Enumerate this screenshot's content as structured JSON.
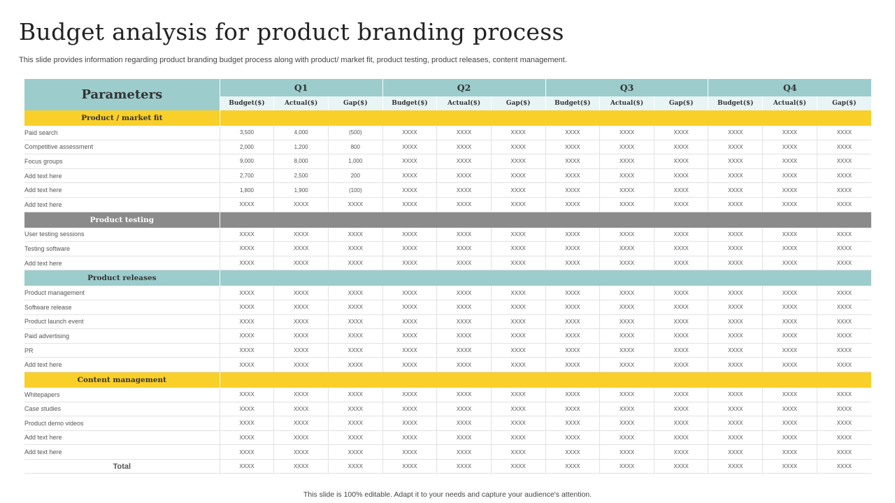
{
  "title": "Budget analysis for product branding process",
  "subtitle": "This slide provides information regarding product branding budget process along with product/ market fit, product testing, product releases, content management.",
  "footer": "This slide is 100% editable. Adapt it to your needs and capture your audience's attention.",
  "table": {
    "params_header": "Parameters",
    "quarters": [
      "Q1",
      "Q2",
      "Q3",
      "Q4"
    ],
    "sub_headers": [
      "Budget($)",
      "Actual($)",
      "Gap($)"
    ],
    "sections": [
      {
        "label": "Product / market fit",
        "style": "yellow",
        "rows": [
          {
            "label": "Paid search",
            "values": [
              "3,500",
              "4,000",
              "(500)",
              "XXXX",
              "XXXX",
              "XXXX",
              "XXXX",
              "XXXX",
              "XXXX",
              "XXXX",
              "XXXX",
              "XXXX"
            ]
          },
          {
            "label": "Competitive assessment",
            "values": [
              "2,000",
              "1,200",
              "800",
              "XXXX",
              "XXXX",
              "XXXX",
              "XXXX",
              "XXXX",
              "XXXX",
              "XXXX",
              "XXXX",
              "XXXX"
            ]
          },
          {
            "label": "Focus groups",
            "values": [
              "9,000",
              "8,000",
              "1,000",
              "XXXX",
              "XXXX",
              "XXXX",
              "XXXX",
              "XXXX",
              "XXXX",
              "XXXX",
              "XXXX",
              "XXXX"
            ]
          },
          {
            "label": "Add text here",
            "values": [
              "2,700",
              "2,500",
              "200",
              "XXXX",
              "XXXX",
              "XXXX",
              "XXXX",
              "XXXX",
              "XXXX",
              "XXXX",
              "XXXX",
              "XXXX"
            ]
          },
          {
            "label": "Add text here",
            "values": [
              "1,800",
              "1,900",
              "(100)",
              "XXXX",
              "XXXX",
              "XXXX",
              "XXXX",
              "XXXX",
              "XXXX",
              "XXXX",
              "XXXX",
              "XXXX"
            ]
          },
          {
            "label": "Add text here",
            "values": [
              "XXXX",
              "XXXX",
              "XXXX",
              "XXXX",
              "XXXX",
              "XXXX",
              "XXXX",
              "XXXX",
              "XXXX",
              "XXXX",
              "XXXX",
              "XXXX"
            ]
          }
        ]
      },
      {
        "label": "Product testing",
        "style": "gray",
        "rows": [
          {
            "label": "User testing sessions",
            "values": [
              "XXXX",
              "XXXX",
              "XXXX",
              "XXXX",
              "XXXX",
              "XXXX",
              "XXXX",
              "XXXX",
              "XXXX",
              "XXXX",
              "XXXX",
              "XXXX"
            ]
          },
          {
            "label": "Testing software",
            "values": [
              "XXXX",
              "XXXX",
              "XXXX",
              "XXXX",
              "XXXX",
              "XXXX",
              "XXXX",
              "XXXX",
              "XXXX",
              "XXXX",
              "XXXX",
              "XXXX"
            ]
          },
          {
            "label": "Add text here",
            "values": [
              "XXXX",
              "XXXX",
              "XXXX",
              "XXXX",
              "XXXX",
              "XXXX",
              "XXXX",
              "XXXX",
              "XXXX",
              "XXXX",
              "XXXX",
              "XXXX"
            ]
          }
        ]
      },
      {
        "label": "Product releases",
        "style": "teal",
        "rows": [
          {
            "label": "Product management",
            "values": [
              "XXXX",
              "XXXX",
              "XXXX",
              "XXXX",
              "XXXX",
              "XXXX",
              "XXXX",
              "XXXX",
              "XXXX",
              "XXXX",
              "XXXX",
              "XXXX"
            ]
          },
          {
            "label": "Software release",
            "values": [
              "XXXX",
              "XXXX",
              "XXXX",
              "XXXX",
              "XXXX",
              "XXXX",
              "XXXX",
              "XXXX",
              "XXXX",
              "XXXX",
              "XXXX",
              "XXXX"
            ]
          },
          {
            "label": "Product launch event",
            "values": [
              "XXXX",
              "XXXX",
              "XXXX",
              "XXXX",
              "XXXX",
              "XXXX",
              "XXXX",
              "XXXX",
              "XXXX",
              "XXXX",
              "XXXX",
              "XXXX"
            ]
          },
          {
            "label": "Paid advertising",
            "values": [
              "XXXX",
              "XXXX",
              "XXXX",
              "XXXX",
              "XXXX",
              "XXXX",
              "XXXX",
              "XXXX",
              "XXXX",
              "XXXX",
              "XXXX",
              "XXXX"
            ]
          },
          {
            "label": "PR",
            "values": [
              "XXXX",
              "XXXX",
              "XXXX",
              "XXXX",
              "XXXX",
              "XXXX",
              "XXXX",
              "XXXX",
              "XXXX",
              "XXXX",
              "XXXX",
              "XXXX"
            ]
          },
          {
            "label": "Add text here",
            "values": [
              "XXXX",
              "XXXX",
              "XXXX",
              "XXXX",
              "XXXX",
              "XXXX",
              "XXXX",
              "XXXX",
              "XXXX",
              "XXXX",
              "XXXX",
              "XXXX"
            ]
          }
        ]
      },
      {
        "label": "Content management",
        "style": "yellow",
        "rows": [
          {
            "label": "Whitepapers",
            "values": [
              "XXXX",
              "XXXX",
              "XXXX",
              "XXXX",
              "XXXX",
              "XXXX",
              "XXXX",
              "XXXX",
              "XXXX",
              "XXXX",
              "XXXX",
              "XXXX"
            ]
          },
          {
            "label": "Case studies",
            "values": [
              "XXXX",
              "XXXX",
              "XXXX",
              "XXXX",
              "XXXX",
              "XXXX",
              "XXXX",
              "XXXX",
              "XXXX",
              "XXXX",
              "XXXX",
              "XXXX"
            ]
          },
          {
            "label": "Product demo videos",
            "values": [
              "XXXX",
              "XXXX",
              "XXXX",
              "XXXX",
              "XXXX",
              "XXXX",
              "XXXX",
              "XXXX",
              "XXXX",
              "XXXX",
              "XXXX",
              "XXXX"
            ]
          },
          {
            "label": "Add text here",
            "values": [
              "XXXX",
              "XXXX",
              "XXXX",
              "XXXX",
              "XXXX",
              "XXXX",
              "XXXX",
              "XXXX",
              "XXXX",
              "XXXX",
              "XXXX",
              "XXXX"
            ]
          },
          {
            "label": "Add text here",
            "values": [
              "XXXX",
              "XXXX",
              "XXXX",
              "XXXX",
              "XXXX",
              "XXXX",
              "XXXX",
              "XXXX",
              "XXXX",
              "XXXX",
              "XXXX",
              "XXXX"
            ]
          }
        ]
      }
    ],
    "total": {
      "label": "Total",
      "values": [
        "XXXX",
        "XXXX",
        "XXXX",
        "XXXX",
        "XXXX",
        "XXXX",
        "XXXX",
        "XXXX",
        "XXXX",
        "XXXX",
        "XXXX",
        "XXXX"
      ]
    }
  },
  "colors": {
    "teal": "#9ccccc",
    "light_teal": "#e9f4f4",
    "yellow": "#f9cf2a",
    "gray": "#8b8b8b"
  }
}
